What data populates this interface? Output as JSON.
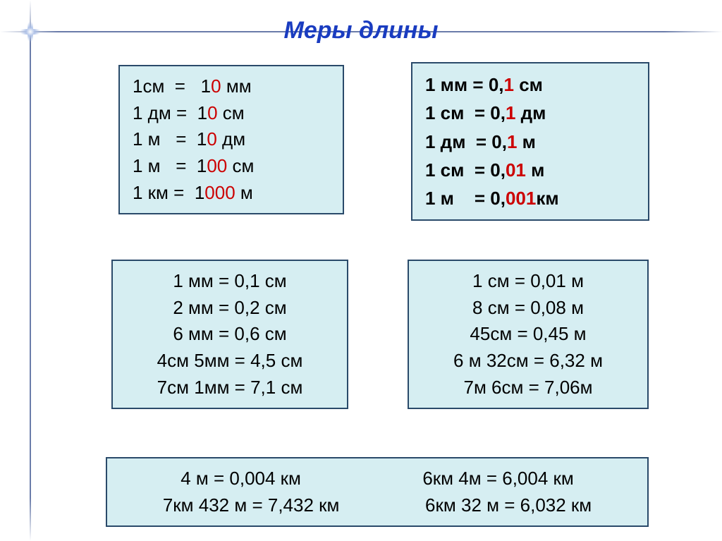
{
  "title": "Меры длины",
  "colors": {
    "title": "#1a3cc0",
    "box_bg": "#d6eef2",
    "box_border": "#2a4a6a",
    "accent_red": "#cc0000",
    "text": "#000000",
    "star_line": "#5a6ea0"
  },
  "boxA": {
    "rows": [
      {
        "lhs": "1см",
        "eq": "=",
        "pre": "1",
        "red": "0",
        "post": " мм"
      },
      {
        "lhs": "1 дм",
        "eq": "=",
        "pre": "1",
        "red": "0",
        "post": " см"
      },
      {
        "lhs": "1 м",
        "eq": "=",
        "pre": "1",
        "red": "0",
        "post": " дм"
      },
      {
        "lhs": "1 м",
        "eq": "=",
        "pre": "1",
        "red": "00",
        "post": " см"
      },
      {
        "lhs": "1 км",
        "eq": "=",
        "pre": "1",
        "red": "000",
        "post": " м"
      }
    ]
  },
  "boxB": {
    "rows": [
      {
        "lhs": "1 мм",
        "eq": "=",
        "pre": "0,",
        "red": "1",
        "post": " см"
      },
      {
        "lhs": "1 см",
        "eq": "=",
        "pre": "0,",
        "red": "1",
        "post": " дм"
      },
      {
        "lhs": "1 дм",
        "eq": "=",
        "pre": "0,",
        "red": "1",
        "post": " м"
      },
      {
        "lhs": "1 см",
        "eq": "=",
        "pre": "0,",
        "red": "01",
        "post": " м"
      },
      {
        "lhs": "1 м",
        "eq": "=",
        "pre": "0,",
        "red": "001",
        "post": "км"
      }
    ]
  },
  "boxC": {
    "rows": [
      "1 мм  =  0,1 см",
      "2 мм  =  0,2 см",
      "6 мм  =  0,6 см",
      "4см 5мм =  4,5 см",
      "7см 1мм =  7,1 см"
    ]
  },
  "boxD": {
    "rows": [
      "1 см  =  0,01 м",
      "8 см  =  0,08 м",
      "45см =  0,45 м",
      "6 м 32см  =  6,32 м",
      "7м   6см  =  7,06м"
    ]
  },
  "boxE": {
    "row1": {
      "left": "4 м = 0,004 км",
      "right": "6км  4м = 6,004 км"
    },
    "row2": {
      "left": "7км 432 м = 7,432 км",
      "right": "6км 32 м = 6,032 км"
    }
  }
}
